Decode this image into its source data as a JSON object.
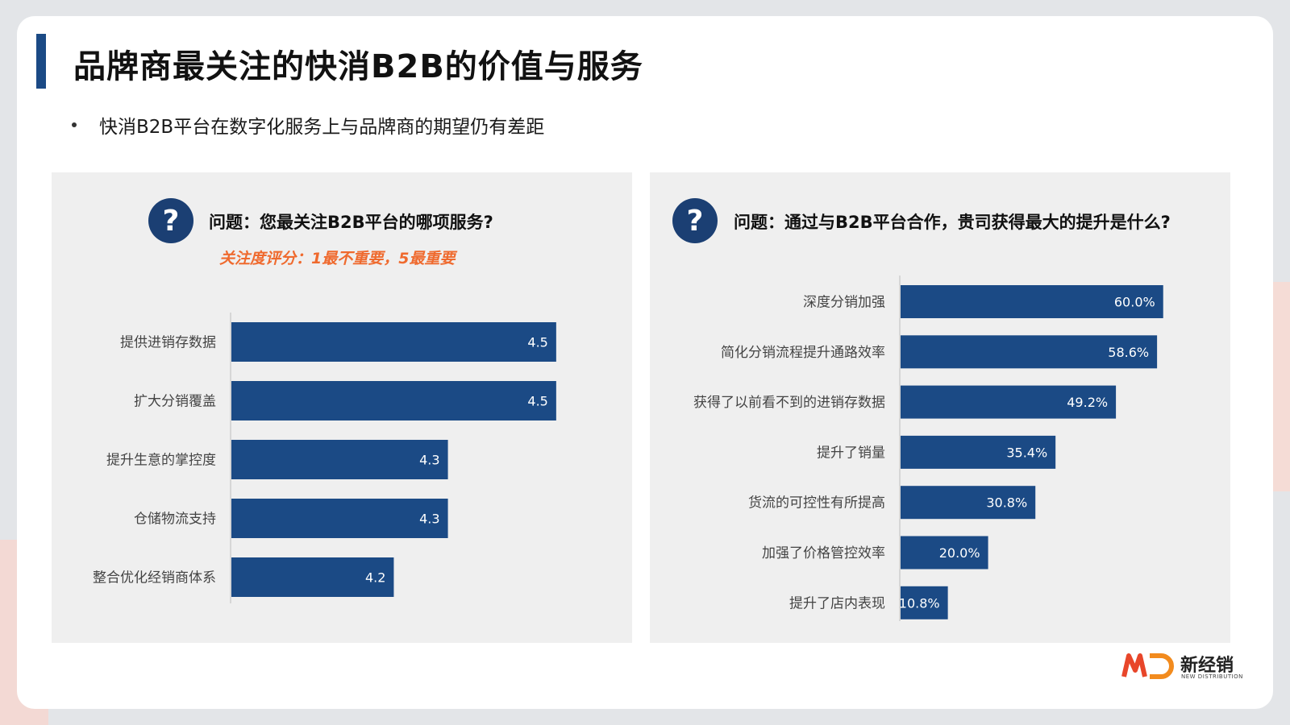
{
  "page": {
    "title": "品牌商最关注的快消B2B的价值与服务",
    "bullet": "快消B2B平台在数字化服务上与品牌商的期望仍有差距"
  },
  "left_panel": {
    "question": "问题：您最关注B2B平台的哪项服务?",
    "note": "关注度评分：1最不重要，5最重要"
  },
  "right_panel": {
    "question": "问题：通过与B2B平台合作，贵司获得最大的提升是什么?"
  },
  "logo": {
    "name": "新经销",
    "subtitle": "NEW DISTRIBUTION"
  },
  "colors": {
    "bar": "#1b4a85",
    "accent": "#ef6a2e",
    "title_bar": "#1b4a85"
  },
  "chart_data": [
    {
      "type": "bar",
      "orientation": "horizontal",
      "categories": [
        "提供进销存数据",
        "扩大分销覆盖",
        "提升生意的掌控度",
        "仓储物流支持",
        "整合优化经销商体系"
      ],
      "values": [
        4.5,
        4.5,
        4.3,
        4.3,
        4.2
      ],
      "value_labels": [
        "4.5",
        "4.5",
        "4.3",
        "4.3",
        "4.2"
      ],
      "xlim": [
        3.9,
        4.6
      ],
      "grid": false
    },
    {
      "type": "bar",
      "orientation": "horizontal",
      "categories": [
        "深度分销加强",
        "简化分销流程提升通路效率",
        "获得了以前看不到的进销存数据",
        "提升了销量",
        "货流的可控性有所提高",
        "加强了价格管控效率",
        "提升了店内表现"
      ],
      "values": [
        60.0,
        58.6,
        49.2,
        35.4,
        30.8,
        20.0,
        10.8
      ],
      "value_labels": [
        "60.0%",
        "58.6%",
        "49.2%",
        "35.4%",
        "30.8%",
        "20.0%",
        "10.8%"
      ],
      "xlim": [
        0,
        70
      ],
      "grid": false
    }
  ]
}
